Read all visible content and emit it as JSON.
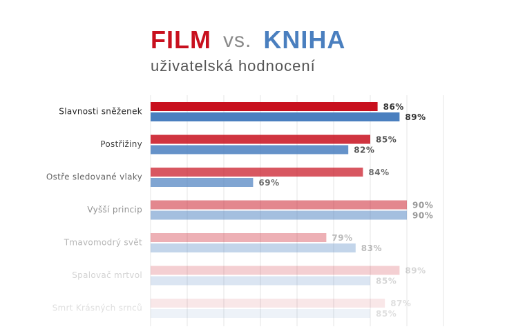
{
  "chart_data": {
    "type": "bar",
    "orientation": "horizontal",
    "title_connector": "vs.",
    "subtitle": "uživatelská hodnocení",
    "categories": [
      "Slavnosti sněženek",
      "Postřižiny",
      "Ostře sledované vlaky",
      "Vyšší princip",
      "Tmavomodrý svět",
      "Spalovač mrtvol",
      "Smrt Krásných srnců"
    ],
    "series": [
      {
        "name": "FILM",
        "color": "#c8101e",
        "values": [
          86,
          85,
          84,
          90,
          79,
          89,
          87
        ],
        "value_labels": [
          "86%",
          "85%",
          "84%",
          "90%",
          "79%",
          "89%",
          "87%"
        ]
      },
      {
        "name": "KNIHA",
        "color": "#4a7fbf",
        "values": [
          89,
          82,
          69,
          90,
          83,
          85,
          85
        ],
        "value_labels": [
          "89%",
          "82%",
          "69%",
          "90%",
          "83%",
          "85%",
          "85%"
        ]
      }
    ],
    "xlim": [
      55,
      95
    ],
    "xticks": [
      55,
      60,
      65,
      70,
      75,
      80,
      85,
      90,
      95
    ],
    "grid": true
  }
}
